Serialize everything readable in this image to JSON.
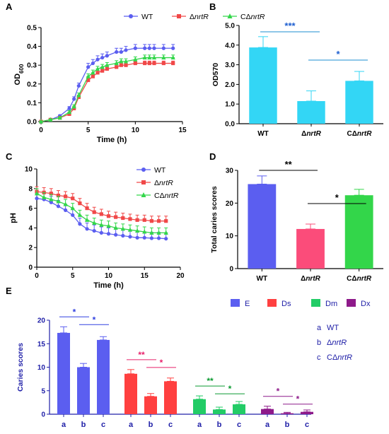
{
  "colors": {
    "wt": "#5b5ef0",
    "mut": "#f04848",
    "comp": "#33d64a",
    "bar_b": "#33d6f5",
    "e": "#5b5ef0",
    "ds": "#ff4040",
    "dm": "#22cc66",
    "dx": "#8e1a8a",
    "axis": "#000000",
    "blue_text": "#2020a8"
  },
  "chart_data": [
    {
      "panel": "A",
      "type": "line",
      "xlabel": "Time (h)",
      "ylabel": "OD",
      "ylabel_sub": "600",
      "xlim": [
        0,
        15
      ],
      "ylim": [
        0,
        0.5
      ],
      "xticks": [
        "0",
        "5",
        "10",
        "15"
      ],
      "yticks": [
        "0.0",
        "0.1",
        "0.2",
        "0.3",
        "0.4",
        "0.5"
      ],
      "legend": [
        "WT",
        "ΔnrtR",
        "CΔnrtR"
      ],
      "legend_position": "top",
      "x": [
        0,
        1,
        2,
        3,
        3.5,
        4,
        5,
        5.5,
        6,
        6.5,
        7,
        8,
        8.5,
        9,
        10,
        11,
        11.5,
        12,
        13,
        14
      ],
      "series": [
        {
          "name": "WT",
          "marker": "circle",
          "values": [
            0.0,
            0.01,
            0.03,
            0.07,
            0.12,
            0.19,
            0.29,
            0.31,
            0.33,
            0.34,
            0.35,
            0.37,
            0.37,
            0.38,
            0.39,
            0.39,
            0.39,
            0.39,
            0.39,
            0.39
          ],
          "err": [
            0.003,
            0.004,
            0.006,
            0.01,
            0.012,
            0.015,
            0.02,
            0.02,
            0.02,
            0.02,
            0.02,
            0.02,
            0.02,
            0.02,
            0.02,
            0.02,
            0.02,
            0.02,
            0.02,
            0.02
          ]
        },
        {
          "name": "ΔnrtR",
          "marker": "square",
          "values": [
            0.0,
            0.01,
            0.02,
            0.04,
            0.07,
            0.13,
            0.22,
            0.24,
            0.26,
            0.27,
            0.28,
            0.29,
            0.3,
            0.3,
            0.31,
            0.31,
            0.31,
            0.31,
            0.31,
            0.31
          ],
          "err": [
            0.003,
            0.004,
            0.005,
            0.007,
            0.008,
            0.01,
            0.012,
            0.012,
            0.012,
            0.012,
            0.012,
            0.012,
            0.012,
            0.012,
            0.012,
            0.012,
            0.012,
            0.012,
            0.012,
            0.012
          ]
        },
        {
          "name": "CΔnrtR",
          "marker": "triangle",
          "values": [
            0.0,
            0.01,
            0.02,
            0.05,
            0.08,
            0.14,
            0.24,
            0.26,
            0.28,
            0.29,
            0.3,
            0.31,
            0.32,
            0.32,
            0.33,
            0.34,
            0.34,
            0.34,
            0.34,
            0.34
          ],
          "err": [
            0.003,
            0.004,
            0.005,
            0.008,
            0.009,
            0.012,
            0.014,
            0.014,
            0.014,
            0.014,
            0.014,
            0.014,
            0.014,
            0.014,
            0.014,
            0.014,
            0.014,
            0.014,
            0.014,
            0.014
          ]
        }
      ]
    },
    {
      "panel": "B",
      "type": "bar",
      "ylabel": "OD570",
      "ylim": [
        0,
        5
      ],
      "yticks": [
        "0.0",
        "1.0",
        "2.0",
        "3.0",
        "4.0",
        "5.0"
      ],
      "categories": [
        "WT",
        "ΔnrtR",
        "CΔnrtR"
      ],
      "values": [
        3.88,
        1.15,
        2.18
      ],
      "err": [
        0.55,
        0.52,
        0.48
      ],
      "significance": [
        {
          "from": 0,
          "to": 1,
          "label": "***"
        },
        {
          "from": 1,
          "to": 2,
          "label": "*"
        }
      ]
    },
    {
      "panel": "C",
      "type": "line",
      "xlabel": "Time (h)",
      "ylabel": "pH",
      "xlim": [
        0,
        20
      ],
      "ylim": [
        0,
        10
      ],
      "xticks": [
        "0",
        "5",
        "10",
        "15",
        "20"
      ],
      "yticks": [
        "0",
        "2",
        "4",
        "6",
        "8",
        "10"
      ],
      "legend": [
        "WT",
        "ΔnrtR",
        "CΔnrtR"
      ],
      "legend_position": "top-right",
      "x": [
        0,
        1,
        2,
        3,
        4,
        5,
        6,
        7,
        8,
        9,
        10,
        11,
        12,
        13,
        14,
        15,
        16,
        17,
        18
      ],
      "series": [
        {
          "name": "WT",
          "marker": "circle",
          "values": [
            7.0,
            6.9,
            6.6,
            6.2,
            5.8,
            5.3,
            4.4,
            3.9,
            3.7,
            3.5,
            3.4,
            3.3,
            3.2,
            3.1,
            3.0,
            3.0,
            2.95,
            2.95,
            2.9
          ],
          "err": [
            0.6,
            0.6,
            0.6,
            0.6,
            0.6,
            0.6,
            0.6,
            0.6,
            0.6,
            0.6,
            0.6,
            0.6,
            0.6,
            0.6,
            0.6,
            0.6,
            0.6,
            0.6,
            0.6
          ]
        },
        {
          "name": "ΔnrtR",
          "marker": "square",
          "values": [
            7.7,
            7.6,
            7.5,
            7.3,
            7.2,
            7.0,
            6.5,
            6.0,
            5.6,
            5.4,
            5.2,
            5.1,
            5.0,
            4.9,
            4.8,
            4.8,
            4.7,
            4.7,
            4.7
          ],
          "err": [
            0.5,
            0.5,
            0.5,
            0.5,
            0.5,
            0.5,
            0.5,
            0.5,
            0.5,
            0.5,
            0.5,
            0.5,
            0.5,
            0.5,
            0.5,
            0.5,
            0.5,
            0.5,
            0.5
          ]
        },
        {
          "name": "CΔnrtR",
          "marker": "triangle",
          "values": [
            7.5,
            7.1,
            6.9,
            6.7,
            6.4,
            6.0,
            5.3,
            4.8,
            4.5,
            4.3,
            4.2,
            4.0,
            3.9,
            3.8,
            3.7,
            3.6,
            3.5,
            3.5,
            3.5
          ],
          "err": [
            0.5,
            0.5,
            0.5,
            0.5,
            0.5,
            0.5,
            0.5,
            0.5,
            0.5,
            0.5,
            0.5,
            0.5,
            0.5,
            0.5,
            0.5,
            0.5,
            0.5,
            0.5,
            0.5
          ]
        }
      ]
    },
    {
      "panel": "D",
      "type": "bar",
      "ylabel": "Total caries scores",
      "ylim": [
        0,
        30
      ],
      "yticks": [
        "0",
        "10",
        "20",
        "30"
      ],
      "categories": [
        "WT",
        "ΔnrtR",
        "CΔnrtR"
      ],
      "values": [
        25.8,
        12.1,
        22.4
      ],
      "err": [
        2.5,
        1.5,
        1.8
      ],
      "significance": [
        {
          "from": 0,
          "to": 1,
          "label": "**"
        },
        {
          "from": 1,
          "to": 2,
          "label": "*"
        }
      ]
    },
    {
      "panel": "E",
      "type": "bar",
      "ylabel": "Caries scores",
      "ylim": [
        0,
        20
      ],
      "yticks": [
        "0",
        "5",
        "10",
        "15",
        "20"
      ],
      "legend": [
        "E",
        "Ds",
        "Dm",
        "Dx"
      ],
      "strain_key": [
        {
          "letter": "a",
          "name": "WT"
        },
        {
          "letter": "b",
          "name": "ΔnrtR"
        },
        {
          "letter": "c",
          "name": "CΔnrtR"
        }
      ],
      "groups": [
        {
          "name": "E",
          "categories": [
            "a",
            "b",
            "c"
          ],
          "values": [
            17.3,
            10.0,
            15.8
          ],
          "err": [
            1.3,
            0.8,
            0.7
          ],
          "significance": [
            {
              "from": 0,
              "to": 1,
              "label": "*"
            },
            {
              "from": 1,
              "to": 2,
              "label": "*"
            }
          ]
        },
        {
          "name": "Ds",
          "categories": [
            "a",
            "b",
            "c"
          ],
          "values": [
            8.6,
            3.8,
            7.0
          ],
          "err": [
            0.9,
            0.6,
            0.7
          ],
          "significance": [
            {
              "from": 0,
              "to": 1,
              "label": "**"
            },
            {
              "from": 1,
              "to": 2,
              "label": "*"
            }
          ]
        },
        {
          "name": "Dm",
          "categories": [
            "a",
            "b",
            "c"
          ],
          "values": [
            3.2,
            1.0,
            2.1
          ],
          "err": [
            0.7,
            0.5,
            0.6
          ],
          "significance": [
            {
              "from": 0,
              "to": 1,
              "label": "**"
            },
            {
              "from": 1,
              "to": 2,
              "label": "*"
            }
          ]
        },
        {
          "name": "Dx",
          "categories": [
            "a",
            "b",
            "c"
          ],
          "values": [
            1.1,
            0.2,
            0.5
          ],
          "err": [
            0.6,
            0.2,
            0.4
          ],
          "significance": [
            {
              "from": 0,
              "to": 1,
              "label": "*"
            },
            {
              "from": 1,
              "to": 2,
              "label": "*"
            }
          ]
        }
      ]
    }
  ]
}
